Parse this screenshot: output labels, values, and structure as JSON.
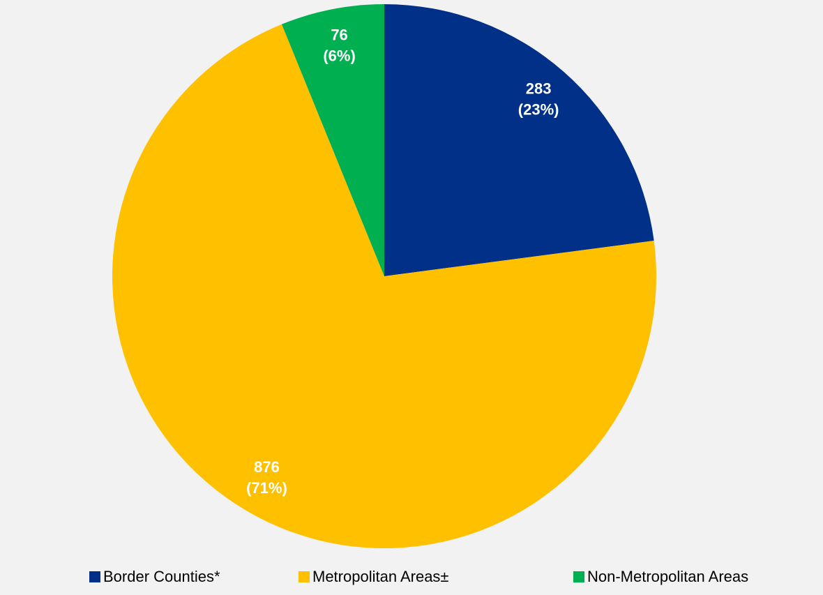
{
  "chart_data": {
    "type": "pie",
    "categories": [
      "Border Counties*",
      "Metropolitan Areas±",
      "Non-Metropolitan Areas"
    ],
    "values": [
      283,
      876,
      76
    ],
    "value_labels": [
      [
        "283",
        "(23%)"
      ],
      [
        "876",
        "(71%)"
      ],
      [
        "76",
        "(6%)"
      ]
    ],
    "colors": [
      "#003087",
      "#ffc000",
      "#00b050"
    ],
    "legend": "bottom"
  }
}
